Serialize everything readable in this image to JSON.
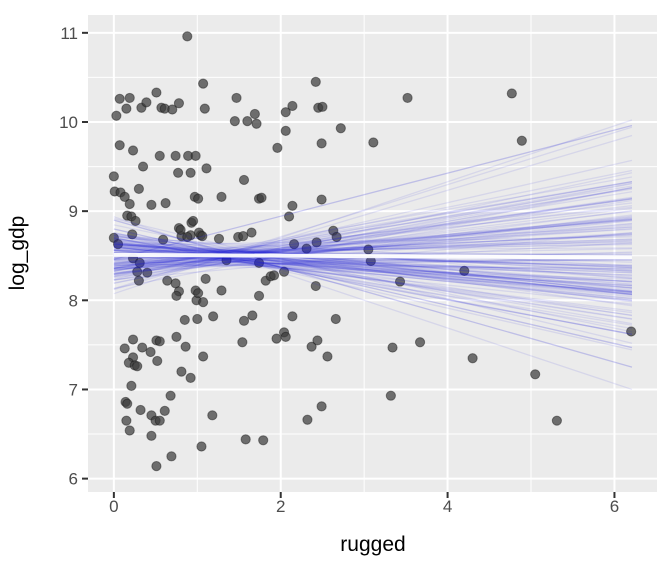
{
  "chart_data": {
    "type": "scatter",
    "xlabel": "rugged",
    "ylabel": "log_gdp",
    "xlim": [
      -0.31,
      6.51
    ],
    "ylim": [
      5.85,
      11.2
    ],
    "x_major_ticks": [
      0,
      2,
      4,
      6
    ],
    "y_major_ticks": [
      6,
      7,
      8,
      9,
      10,
      11
    ],
    "x_minor_ticks": [
      1,
      3,
      5
    ],
    "y_minor_ticks": [
      6.5,
      7.5,
      8.5,
      9.5,
      10.5
    ],
    "grid": true,
    "legend": "none",
    "points": [
      [
        0.88,
        10.96
      ],
      [
        0.07,
        10.26
      ],
      [
        0.19,
        10.27
      ],
      [
        0.03,
        10.07
      ],
      [
        0.15,
        10.15
      ],
      [
        0.33,
        10.16
      ],
      [
        0.39,
        10.22
      ],
      [
        0.51,
        10.33
      ],
      [
        0.57,
        10.16
      ],
      [
        0.61,
        10.15
      ],
      [
        0.7,
        10.14
      ],
      [
        0.78,
        10.21
      ],
      [
        1.07,
        10.43
      ],
      [
        1.09,
        10.15
      ],
      [
        1.47,
        10.27
      ],
      [
        1.45,
        10.01
      ],
      [
        1.6,
        10.01
      ],
      [
        1.69,
        10.09
      ],
      [
        1.71,
        9.98
      ],
      [
        2.06,
        10.11
      ],
      [
        2.14,
        10.18
      ],
      [
        2.42,
        10.45
      ],
      [
        2.45,
        10.16
      ],
      [
        2.5,
        10.17
      ],
      [
        2.06,
        9.9
      ],
      [
        2.72,
        9.93
      ],
      [
        3.52,
        10.27
      ],
      [
        4.77,
        10.32
      ],
      [
        4.89,
        9.79
      ],
      [
        3.11,
        9.77
      ],
      [
        0.07,
        9.74
      ],
      [
        0.23,
        9.68
      ],
      [
        0.55,
        9.62
      ],
      [
        0.74,
        9.62
      ],
      [
        0.89,
        9.62
      ],
      [
        0.98,
        9.62
      ],
      [
        2.49,
        9.76
      ],
      [
        1.96,
        9.71
      ],
      [
        0.35,
        9.5
      ],
      [
        0.77,
        9.43
      ],
      [
        0.92,
        9.43
      ],
      [
        1.11,
        9.48
      ],
      [
        0.0,
        9.39
      ],
      [
        1.56,
        9.35
      ],
      [
        0.01,
        9.22
      ],
      [
        0.08,
        9.21
      ],
      [
        0.3,
        9.25
      ],
      [
        0.13,
        9.16
      ],
      [
        0.19,
        9.08
      ],
      [
        0.45,
        9.07
      ],
      [
        0.62,
        9.09
      ],
      [
        0.97,
        9.16
      ],
      [
        1.01,
        9.14
      ],
      [
        1.29,
        9.16
      ],
      [
        1.74,
        9.14
      ],
      [
        1.77,
        9.15
      ],
      [
        2.14,
        9.06
      ],
      [
        2.49,
        9.13
      ],
      [
        0.16,
        8.95
      ],
      [
        0.21,
        8.94
      ],
      [
        0.26,
        8.89
      ],
      [
        2.1,
        8.94
      ],
      [
        0.78,
        8.81
      ],
      [
        0.93,
        8.87
      ],
      [
        0.81,
        8.72
      ],
      [
        0.92,
        8.73
      ],
      [
        1.04,
        8.73
      ],
      [
        1.26,
        8.69
      ],
      [
        1.49,
        8.71
      ],
      [
        1.55,
        8.72
      ],
      [
        1.65,
        8.76
      ],
      [
        2.16,
        8.63
      ],
      [
        2.31,
        8.58
      ],
      [
        2.43,
        8.65
      ],
      [
        2.63,
        8.78
      ],
      [
        2.67,
        8.71
      ],
      [
        0.0,
        8.7
      ],
      [
        0.05,
        8.63
      ],
      [
        3.05,
        8.57
      ],
      [
        0.22,
        8.74
      ],
      [
        0.59,
        8.68
      ],
      [
        0.8,
        8.79
      ],
      [
        0.88,
        8.71
      ],
      [
        0.95,
        8.89
      ],
      [
        1.02,
        8.76
      ],
      [
        1.06,
        8.72
      ],
      [
        1.35,
        8.45
      ],
      [
        0.23,
        8.47
      ],
      [
        0.31,
        8.42
      ],
      [
        3.08,
        8.44
      ],
      [
        1.74,
        8.42
      ],
      [
        0.28,
        8.32
      ],
      [
        0.4,
        8.31
      ],
      [
        0.3,
        8.22
      ],
      [
        0.64,
        8.22
      ],
      [
        0.74,
        8.19
      ],
      [
        0.78,
        8.1
      ],
      [
        0.98,
        8.11
      ],
      [
        0.99,
        8.0
      ],
      [
        1.1,
        8.24
      ],
      [
        1.29,
        8.11
      ],
      [
        1.82,
        8.22
      ],
      [
        1.88,
        8.27
      ],
      [
        1.92,
        8.28
      ],
      [
        2.04,
        8.32
      ],
      [
        1.74,
        8.05
      ],
      [
        2.42,
        8.16
      ],
      [
        3.43,
        8.21
      ],
      [
        4.2,
        8.33
      ],
      [
        1.01,
        8.08
      ],
      [
        1.07,
        7.98
      ],
      [
        0.75,
        8.05
      ],
      [
        0.85,
        7.78
      ],
      [
        1.0,
        7.79
      ],
      [
        1.19,
        7.82
      ],
      [
        1.56,
        7.77
      ],
      [
        1.66,
        7.83
      ],
      [
        2.14,
        7.82
      ],
      [
        2.66,
        7.79
      ],
      [
        2.04,
        7.64
      ],
      [
        6.2,
        7.65
      ],
      [
        0.23,
        7.56
      ],
      [
        0.51,
        7.55
      ],
      [
        0.55,
        7.54
      ],
      [
        0.75,
        7.59
      ],
      [
        1.95,
        7.57
      ],
      [
        2.06,
        7.59
      ],
      [
        2.37,
        7.48
      ],
      [
        2.44,
        7.55
      ],
      [
        1.54,
        7.53
      ],
      [
        3.34,
        7.47
      ],
      [
        3.67,
        7.53
      ],
      [
        0.13,
        7.46
      ],
      [
        0.34,
        7.47
      ],
      [
        0.44,
        7.42
      ],
      [
        0.86,
        7.48
      ],
      [
        0.23,
        7.36
      ],
      [
        0.18,
        7.3
      ],
      [
        0.25,
        7.27
      ],
      [
        0.28,
        7.26
      ],
      [
        0.52,
        7.32
      ],
      [
        0.81,
        7.2
      ],
      [
        0.92,
        7.13
      ],
      [
        1.07,
        7.37
      ],
      [
        2.56,
        7.37
      ],
      [
        0.21,
        7.04
      ],
      [
        4.3,
        7.35
      ],
      [
        5.05,
        7.17
      ],
      [
        0.68,
        6.93
      ],
      [
        0.14,
        6.86
      ],
      [
        0.16,
        6.84
      ],
      [
        0.32,
        6.77
      ],
      [
        0.61,
        6.76
      ],
      [
        0.45,
        6.71
      ],
      [
        0.5,
        6.65
      ],
      [
        0.55,
        6.65
      ],
      [
        0.15,
        6.65
      ],
      [
        1.18,
        6.71
      ],
      [
        0.19,
        6.54
      ],
      [
        0.45,
        6.48
      ],
      [
        2.32,
        6.66
      ],
      [
        2.49,
        6.81
      ],
      [
        3.32,
        6.93
      ],
      [
        5.31,
        6.65
      ],
      [
        1.58,
        6.44
      ],
      [
        1.79,
        6.43
      ],
      [
        1.05,
        6.36
      ],
      [
        0.69,
        6.25
      ],
      [
        0.51,
        6.14
      ]
    ],
    "spaghetti": {
      "description": "posterior sample regression lines",
      "x_start": 0.0,
      "x_end": 6.21,
      "pivot_x": 1.34,
      "count": 150,
      "pivot_mean": 8.5,
      "pivot_sd": 0.055,
      "slope_sd": 0.1,
      "seed": 11,
      "outlier_pairs": [
        [
          8.46,
          9.96
        ],
        [
          8.9,
          7.25
        ],
        [
          8.8,
          7.47
        ],
        [
          8.7,
          7.62
        ]
      ]
    },
    "mean_line": {
      "y_start": 8.51,
      "y_end": 8.48
    }
  },
  "styles": {
    "panel_bg": "#EBEBEB",
    "grid_color": "#FFFFFF",
    "tick_mark_color": "#333333",
    "tick_label_color": "#4D4D4D",
    "axis_title_color": "#000000",
    "point_fill": "#3C3C3C",
    "point_stroke": "#141414",
    "spaghetti_color": "#2222D4",
    "mean_line_color": "#FFFFFF"
  }
}
